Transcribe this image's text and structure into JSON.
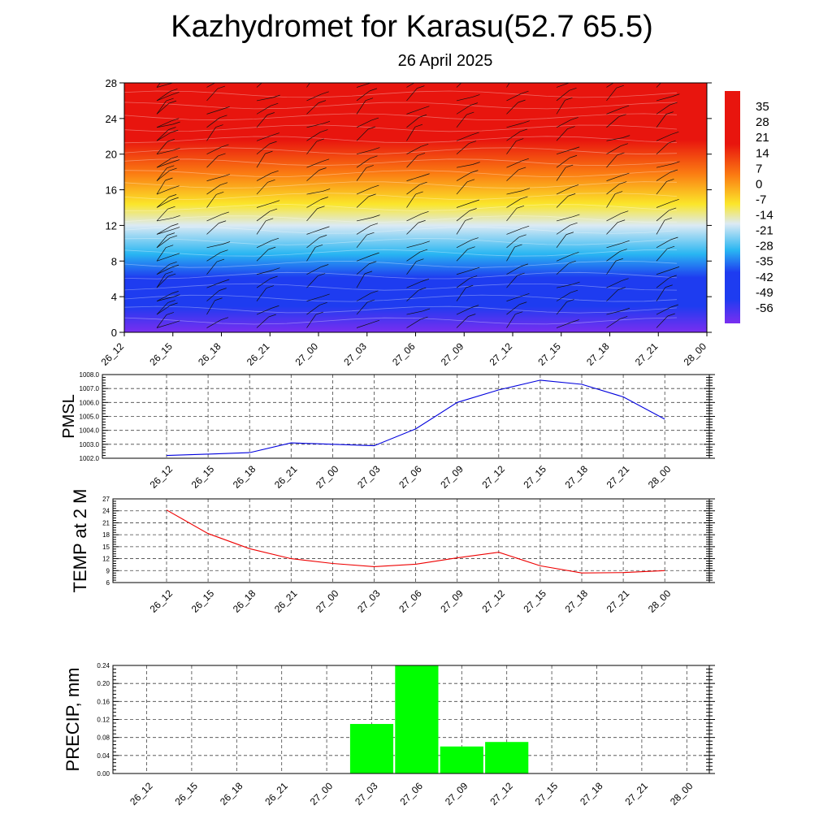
{
  "title": "Kazhydromet for Karasu(52.7 65.5)",
  "subtitle": "26 April 2025",
  "time_labels": [
    "26_12",
    "26_15",
    "26_18",
    "26_21",
    "27_00",
    "27_03",
    "27_06",
    "27_09",
    "27_12",
    "27_15",
    "27_18",
    "27_21",
    "28_00"
  ],
  "chart_data": [
    {
      "type": "heatmap",
      "name": "",
      "x": [
        "26_12",
        "26_15",
        "26_18",
        "26_21",
        "27_00",
        "27_03",
        "27_06",
        "27_09",
        "27_12",
        "27_15",
        "27_18",
        "27_21",
        "28_00"
      ],
      "y_ticks": [
        0,
        4,
        8,
        12,
        16,
        20,
        24,
        28
      ],
      "ylim": [
        0,
        28
      ],
      "colorbar_labels": [
        "35",
        "28",
        "21",
        "14",
        "7",
        "0",
        "-7",
        "-14",
        "-21",
        "-28",
        "-35",
        "-42",
        "-49",
        "-56"
      ],
      "color_range": [
        -63,
        42
      ],
      "grid": false,
      "overlay": "wind barbs",
      "colors": {
        "warm": "#e8150e",
        "orange": "#fb7b12",
        "yellow": "#fbe62a",
        "neutral": "#dceaf4",
        "cyan": "#29b6f2",
        "blue": "#1e3cf0",
        "purple": "#7a2ef0"
      }
    },
    {
      "type": "line",
      "ylabel": "PMSL",
      "x": [
        "26_12",
        "26_15",
        "26_18",
        "26_21",
        "27_00",
        "27_03",
        "27_06",
        "27_09",
        "27_12",
        "27_15",
        "27_18",
        "27_21",
        "28_00"
      ],
      "series": [
        {
          "values": [
            1002.2,
            1002.3,
            1002.4,
            1003.1,
            1003.0,
            1002.9,
            1004.1,
            1006.0,
            1006.9,
            1007.6,
            1007.3,
            1006.4,
            1004.8
          ]
        }
      ],
      "y_ticks": [
        "1002.0",
        "1003.0",
        "1004.0",
        "1005.0",
        "1006.0",
        "1007.0",
        "1008.0"
      ],
      "ylim": [
        1002.0,
        1008.0
      ],
      "color": "#0000dd",
      "grid": true
    },
    {
      "type": "line",
      "ylabel": "TEMP at 2 M",
      "x": [
        "26_12",
        "26_15",
        "26_18",
        "26_21",
        "27_00",
        "27_03",
        "27_06",
        "27_09",
        "27_12",
        "27_15",
        "27_18",
        "27_21",
        "28_00"
      ],
      "series": [
        {
          "values": [
            24.2,
            18.3,
            14.5,
            12.0,
            10.8,
            10.0,
            10.6,
            12.2,
            13.6,
            10.2,
            8.4,
            8.5,
            9.0
          ]
        }
      ],
      "y_ticks": [
        "6",
        "9",
        "12",
        "15",
        "18",
        "21",
        "24",
        "27"
      ],
      "ylim": [
        6,
        27
      ],
      "color": "#ee0000",
      "grid": true
    },
    {
      "type": "bar",
      "ylabel": "PRECIP, mm",
      "categories": [
        "26_12",
        "26_15",
        "26_18",
        "26_21",
        "27_00",
        "27_03",
        "27_06",
        "27_09",
        "27_12",
        "27_15",
        "27_18",
        "27_21",
        "28_00"
      ],
      "values": [
        0,
        0,
        0,
        0,
        0,
        0.11,
        0.24,
        0.06,
        0.07,
        0,
        0,
        0,
        0
      ],
      "y_ticks": [
        "0.00",
        "0.04",
        "0.08",
        "0.12",
        "0.16",
        "0.20",
        "0.24"
      ],
      "ylim": [
        0,
        0.24
      ],
      "color": "#00ff00",
      "grid": true
    }
  ]
}
